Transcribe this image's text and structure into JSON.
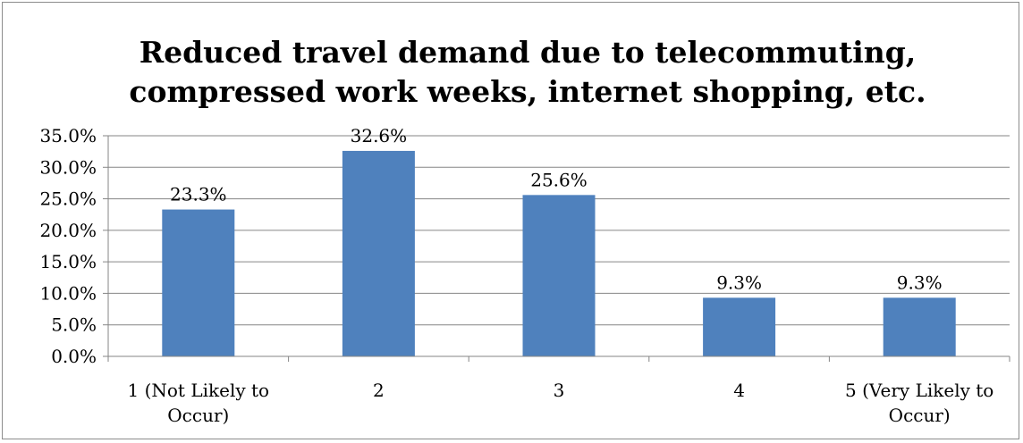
{
  "chart_data": {
    "type": "bar",
    "title_lines": [
      "Reduced travel demand due to telecommuting,",
      "compressed work weeks, internet shopping, etc."
    ],
    "categories": [
      [
        "1 (Not Likely to",
        "Occur)"
      ],
      [
        "2"
      ],
      [
        "3"
      ],
      [
        "4"
      ],
      [
        "5 (Very Likely to",
        "Occur)"
      ]
    ],
    "values": [
      23.3,
      32.6,
      25.6,
      9.3,
      9.3
    ],
    "value_labels": [
      "23.3%",
      "32.6%",
      "25.6%",
      "9.3%",
      "9.3%"
    ],
    "ylim": [
      0,
      35
    ],
    "yticks": [
      {
        "value": 0,
        "label": "0.0%"
      },
      {
        "value": 5,
        "label": "5.0%"
      },
      {
        "value": 10,
        "label": "10.0%"
      },
      {
        "value": 15,
        "label": "15.0%"
      },
      {
        "value": 20,
        "label": "20.0%"
      },
      {
        "value": 25,
        "label": "25.0%"
      },
      {
        "value": 30,
        "label": "30.0%"
      },
      {
        "value": 35,
        "label": "35.0%"
      }
    ],
    "grid": true,
    "legend": "none",
    "bar_color": "#4f81bd",
    "grid_color": "#868686"
  }
}
